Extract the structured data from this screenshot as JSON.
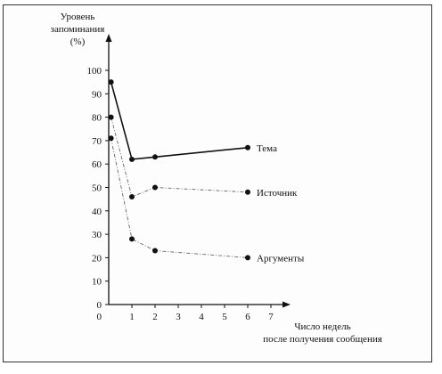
{
  "chart_data": {
    "type": "line",
    "ylabel_lines": [
      "Уровень",
      "запоминания",
      "(%)"
    ],
    "xlabel_lines": [
      "Число недель",
      "после получения сообщения"
    ],
    "x_ticks": [
      "0",
      "1",
      "2",
      "3",
      "4",
      "5",
      "6",
      "7"
    ],
    "y_ticks": [
      "0",
      "10",
      "20",
      "30",
      "40",
      "50",
      "60",
      "70",
      "80",
      "90",
      "100"
    ],
    "xlim": [
      0,
      7.6
    ],
    "ylim": [
      0,
      100
    ],
    "grid": false,
    "series": [
      {
        "name": "Тема",
        "style": "solid",
        "color": "#111111",
        "x": [
          0.1,
          1,
          2,
          6
        ],
        "y": [
          95,
          62,
          63,
          67
        ]
      },
      {
        "name": "Источник",
        "style": "dashdot",
        "color": "#666666",
        "x": [
          0.1,
          1,
          2,
          6
        ],
        "y": [
          80,
          46,
          50,
          48
        ]
      },
      {
        "name": "Аргументы",
        "style": "dashdot",
        "color": "#666666",
        "x": [
          0.1,
          1,
          2,
          6
        ],
        "y": [
          71,
          28,
          23,
          20
        ]
      }
    ]
  }
}
